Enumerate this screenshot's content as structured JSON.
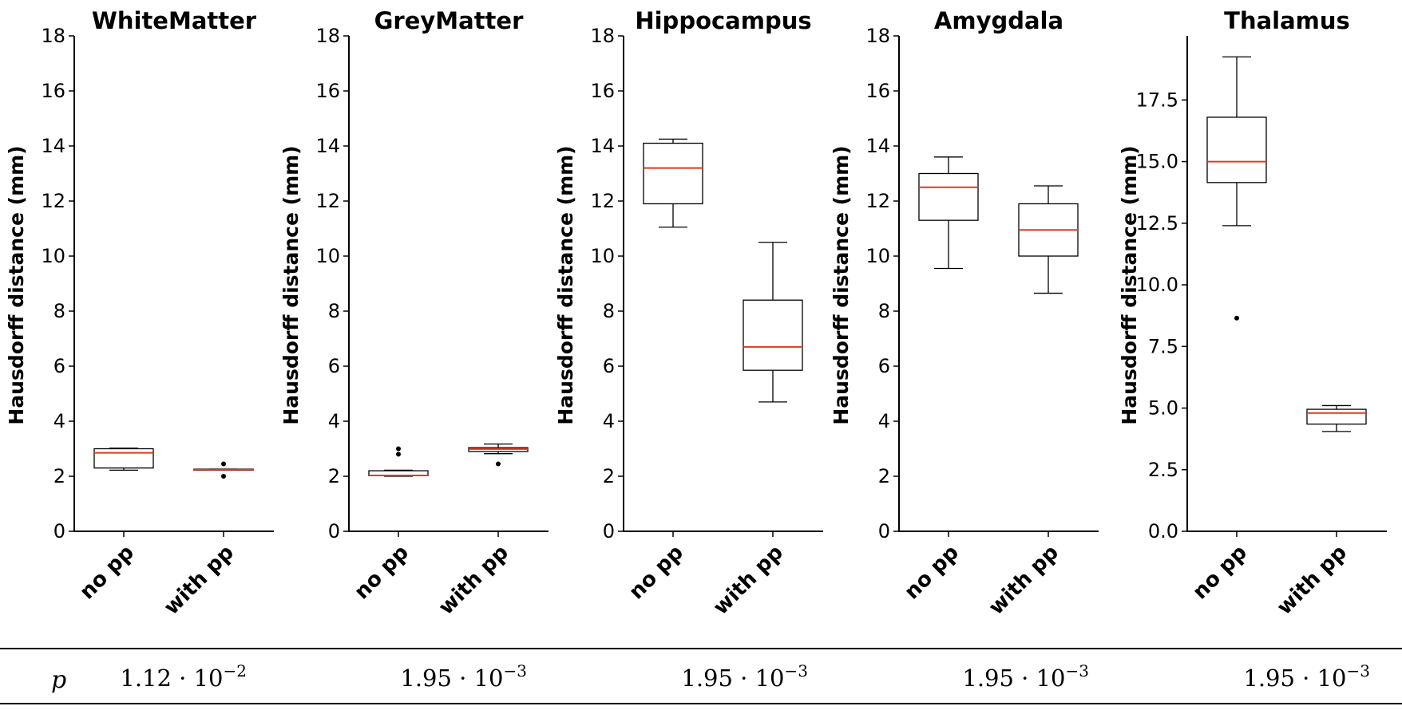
{
  "chart_data": [
    {
      "type": "box",
      "title": "WhiteMatter",
      "ylabel": "Hausdorff distance (mm)",
      "ylim": [
        0,
        18
      ],
      "yticks": [
        "0",
        "2",
        "4",
        "6",
        "8",
        "10",
        "12",
        "14",
        "16",
        "18"
      ],
      "categories": [
        "no pp",
        "with pp"
      ],
      "boxes": [
        {
          "q1": 2.3,
          "median": 2.85,
          "q3": 3.0,
          "whislo": 2.22,
          "whishi": 3.02,
          "fliers": []
        },
        {
          "q1": 2.22,
          "median": 2.24,
          "q3": 2.26,
          "whislo": 2.22,
          "whishi": 2.26,
          "fliers": [
            2.45,
            2.0
          ]
        }
      ]
    },
    {
      "type": "box",
      "title": "GreyMatter",
      "ylabel": "Hausdorff distance (mm)",
      "ylim": [
        0,
        18
      ],
      "yticks": [
        "0",
        "2",
        "4",
        "6",
        "8",
        "10",
        "12",
        "14",
        "16",
        "18"
      ],
      "categories": [
        "no pp",
        "with pp"
      ],
      "boxes": [
        {
          "q1": 2.02,
          "median": 2.03,
          "q3": 2.2,
          "whislo": 2.0,
          "whishi": 2.22,
          "fliers": [
            3.0,
            2.8
          ]
        },
        {
          "q1": 2.9,
          "median": 2.99,
          "q3": 3.04,
          "whislo": 2.82,
          "whishi": 3.17,
          "fliers": [
            2.45
          ]
        }
      ]
    },
    {
      "type": "box",
      "title": "Hippocampus",
      "ylabel": "Hausdorff distance (mm)",
      "ylim": [
        0,
        18
      ],
      "yticks": [
        "0",
        "2",
        "4",
        "6",
        "8",
        "10",
        "12",
        "14",
        "16",
        "18"
      ],
      "categories": [
        "no pp",
        "with pp"
      ],
      "boxes": [
        {
          "q1": 11.9,
          "median": 13.2,
          "q3": 14.1,
          "whislo": 11.05,
          "whishi": 14.25,
          "fliers": []
        },
        {
          "q1": 5.85,
          "median": 6.7,
          "q3": 8.4,
          "whislo": 4.7,
          "whishi": 10.5,
          "fliers": []
        }
      ]
    },
    {
      "type": "box",
      "title": "Amygdala",
      "ylabel": "Hausdorff distance (mm)",
      "ylim": [
        0,
        18
      ],
      "yticks": [
        "0",
        "2",
        "4",
        "6",
        "8",
        "10",
        "12",
        "14",
        "16",
        "18"
      ],
      "categories": [
        "no pp",
        "with pp"
      ],
      "boxes": [
        {
          "q1": 11.3,
          "median": 12.5,
          "q3": 13.0,
          "whislo": 9.55,
          "whishi": 13.6,
          "fliers": []
        },
        {
          "q1": 10.0,
          "median": 10.95,
          "q3": 11.9,
          "whislo": 8.65,
          "whishi": 12.55,
          "fliers": []
        }
      ]
    },
    {
      "type": "box",
      "title": "Thalamus",
      "ylabel": "Hausdorff distance (mm)",
      "ylim": [
        0,
        20.1
      ],
      "yticks": [
        "0.0",
        "2.5",
        "5.0",
        "7.5",
        "10.0",
        "12.5",
        "15.0",
        "17.5"
      ],
      "categories": [
        "no pp",
        "with pp"
      ],
      "boxes": [
        {
          "q1": 14.15,
          "median": 15.0,
          "q3": 16.8,
          "whislo": 12.4,
          "whishi": 19.25,
          "fliers": [
            8.65
          ]
        },
        {
          "q1": 4.35,
          "median": 4.8,
          "q3": 4.95,
          "whislo": 4.05,
          "whishi": 5.1,
          "fliers": []
        }
      ]
    }
  ],
  "p_table": {
    "label": "p",
    "values": [
      {
        "mantissa": "1.12 · 10",
        "exponent": "−2"
      },
      {
        "mantissa": "1.95 · 10",
        "exponent": "−3"
      },
      {
        "mantissa": "1.95 · 10",
        "exponent": "−3"
      },
      {
        "mantissa": "1.95 · 10",
        "exponent": "−3"
      },
      {
        "mantissa": "1.95 · 10",
        "exponent": "−3"
      }
    ]
  },
  "colors": {
    "median": "#e03a1e",
    "box": "#000000",
    "axis": "#000000"
  }
}
